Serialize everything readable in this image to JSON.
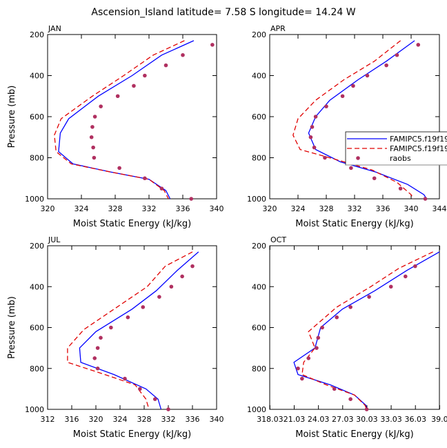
{
  "figure": {
    "title": "Ascension_Island   latitude=  7.58 S longitude=  14.24 W"
  },
  "colors": {
    "model1": "#0000ff",
    "model2": "#e00000",
    "obs": "#b03060"
  },
  "legend": {
    "placement": "right of APR panel",
    "entries": [
      {
        "label": "FAMIPC5.f19f19.",
        "style": "solid",
        "color": "#0000ff"
      },
      {
        "label": "FAMIPC5.f19f19.",
        "style": "dashed",
        "color": "#e00000"
      },
      {
        "label": "raobs",
        "style": "marker",
        "color": "#b03060"
      }
    ]
  },
  "chart_data": [
    {
      "type": "line",
      "title": "JAN",
      "xlabel": "Moist Static Energy (kJ/kg)",
      "ylabel": "Pressure (mb)",
      "xlim": [
        320,
        340
      ],
      "ylim": [
        1000,
        200
      ],
      "xticks": [
        320,
        324,
        328,
        332,
        336,
        340
      ],
      "xticklabels": [
        "320",
        "324",
        "328",
        "332",
        "336",
        "340"
      ],
      "yticks": [
        200,
        400,
        600,
        800,
        1000
      ],
      "yticklabels": [
        "200",
        "400",
        "600",
        "800",
        "1000"
      ],
      "series": [
        {
          "name": "FAMIPC5.f19f19.",
          "style": "solid",
          "points": [
            [
              337.3,
              230
            ],
            [
              333.5,
              300
            ],
            [
              330.0,
              400
            ],
            [
              326.0,
              500
            ],
            [
              322.5,
              610
            ],
            [
              321.5,
              680
            ],
            [
              321.3,
              770
            ],
            [
              323.0,
              830
            ],
            [
              327.5,
              870
            ],
            [
              332.0,
              905
            ],
            [
              334.0,
              960
            ],
            [
              334.5,
              1000
            ]
          ]
        },
        {
          "name": "FAMIPC5.f19f19.",
          "style": "dashed",
          "points": [
            [
              336.2,
              230
            ],
            [
              332.5,
              300
            ],
            [
              329.0,
              400
            ],
            [
              325.3,
              500
            ],
            [
              321.6,
              610
            ],
            [
              320.8,
              690
            ],
            [
              321.0,
              770
            ],
            [
              322.8,
              830
            ],
            [
              327.5,
              870
            ],
            [
              332.0,
              905
            ],
            [
              333.8,
              960
            ],
            [
              334.3,
              1000
            ]
          ]
        },
        {
          "name": "raobs",
          "style": "marker",
          "points": [
            [
              339.5,
              250
            ],
            [
              336.0,
              300
            ],
            [
              334.0,
              350
            ],
            [
              331.5,
              400
            ],
            [
              330.2,
              450
            ],
            [
              328.3,
              500
            ],
            [
              326.3,
              550
            ],
            [
              325.6,
              600
            ],
            [
              325.3,
              650
            ],
            [
              325.2,
              700
            ],
            [
              325.4,
              750
            ],
            [
              325.5,
              800
            ],
            [
              328.5,
              850
            ],
            [
              331.5,
              900
            ],
            [
              333.5,
              950
            ],
            [
              337.0,
              1000
            ]
          ]
        }
      ]
    },
    {
      "type": "line",
      "title": "APR",
      "xlabel": "Moist Static Energy (kJ/kg)",
      "ylabel": "",
      "xlim": [
        320,
        344
      ],
      "ylim": [
        1000,
        200
      ],
      "xticks": [
        320,
        324,
        328,
        332,
        336,
        340,
        344
      ],
      "xticklabels": [
        "320",
        "324",
        "328",
        "332",
        "336",
        "340",
        "344"
      ],
      "yticks": [
        200,
        400,
        600,
        800,
        1000
      ],
      "yticklabels": [
        "200",
        "400",
        "600",
        "800",
        "1000"
      ],
      "series": [
        {
          "name": "FAMIPC5.f19f19.",
          "style": "solid",
          "points": [
            [
              340.5,
              230
            ],
            [
              336.5,
              330
            ],
            [
              332.5,
              420
            ],
            [
              328.5,
              520
            ],
            [
              326.5,
              600
            ],
            [
              325.5,
              680
            ],
            [
              326.5,
              760
            ],
            [
              330.0,
              820
            ],
            [
              335.0,
              870
            ],
            [
              339.5,
              930
            ],
            [
              341.8,
              980
            ],
            [
              342.2,
              1000
            ]
          ]
        },
        {
          "name": "FAMIPC5.f19f19.",
          "style": "dashed",
          "points": [
            [
              338.5,
              230
            ],
            [
              334.8,
              330
            ],
            [
              330.5,
              420
            ],
            [
              326.5,
              520
            ],
            [
              324.0,
              610
            ],
            [
              323.3,
              690
            ],
            [
              324.3,
              760
            ],
            [
              329.5,
              810
            ],
            [
              334.5,
              860
            ],
            [
              338.0,
              920
            ],
            [
              340.0,
              980
            ],
            [
              340.3,
              1000
            ]
          ]
        },
        {
          "name": "raobs",
          "style": "marker",
          "points": [
            [
              341.0,
              250
            ],
            [
              338.0,
              300
            ],
            [
              336.5,
              350
            ],
            [
              333.8,
              400
            ],
            [
              331.8,
              450
            ],
            [
              330.3,
              500
            ],
            [
              328.0,
              550
            ],
            [
              326.5,
              600
            ],
            [
              326.0,
              650
            ],
            [
              325.8,
              700
            ],
            [
              326.3,
              750
            ],
            [
              327.8,
              800
            ],
            [
              331.5,
              850
            ],
            [
              334.8,
              900
            ],
            [
              338.5,
              950
            ],
            [
              342.0,
              1000
            ]
          ]
        }
      ]
    },
    {
      "type": "line",
      "title": "JUL",
      "xlabel": "Moist Static Energy (kJ/kg)",
      "ylabel": "Pressure (mb)",
      "xlim": [
        312,
        340
      ],
      "ylim": [
        1000,
        200
      ],
      "xticks": [
        312,
        316,
        320,
        324,
        328,
        332,
        336,
        340
      ],
      "xticklabels": [
        "312",
        "316",
        "320",
        "324",
        "328",
        "332",
        "336",
        "340"
      ],
      "yticks": [
        200,
        400,
        600,
        800,
        1000
      ],
      "yticklabels": [
        "200",
        "400",
        "600",
        "800",
        "1000"
      ],
      "series": [
        {
          "name": "FAMIPC5.f19f19.",
          "style": "solid",
          "points": [
            [
              337.0,
              230
            ],
            [
              333.5,
              320
            ],
            [
              330.0,
              420
            ],
            [
              326.0,
              510
            ],
            [
              320.0,
              620
            ],
            [
              317.3,
              700
            ],
            [
              317.5,
              770
            ],
            [
              323.0,
              830
            ],
            [
              328.3,
              900
            ],
            [
              330.3,
              950
            ],
            [
              330.8,
              1000
            ]
          ]
        },
        {
          "name": "FAMIPC5.f19f19.",
          "style": "dashed",
          "points": [
            [
              336.0,
              230
            ],
            [
              331.5,
              300
            ],
            [
              328.5,
              400
            ],
            [
              323.5,
              500
            ],
            [
              318.0,
              610
            ],
            [
              315.3,
              700
            ],
            [
              315.3,
              770
            ],
            [
              320.5,
              820
            ],
            [
              326.5,
              880
            ],
            [
              328.3,
              950
            ],
            [
              328.8,
              1000
            ]
          ]
        },
        {
          "name": "raobs",
          "style": "marker",
          "points": [
            [
              336.0,
              300
            ],
            [
              334.3,
              350
            ],
            [
              332.5,
              400
            ],
            [
              330.5,
              450
            ],
            [
              327.8,
              500
            ],
            [
              325.3,
              550
            ],
            [
              322.5,
              600
            ],
            [
              320.8,
              650
            ],
            [
              320.3,
              700
            ],
            [
              319.8,
              750
            ],
            [
              320.3,
              800
            ],
            [
              324.8,
              850
            ],
            [
              327.3,
              900
            ],
            [
              329.8,
              950
            ],
            [
              332.0,
              1000
            ]
          ]
        }
      ]
    },
    {
      "type": "line",
      "title": "OCT",
      "xlabel": "Moist Static Energy (kJ/kg)",
      "ylabel": "",
      "xlim": [
        318.0,
        339.0
      ],
      "ylim": [
        1000,
        200
      ],
      "xticks": [
        318.03,
        321.03,
        324.03,
        327.03,
        330.03,
        333.03,
        336.03,
        339.03
      ],
      "xticklabels": [
        "318.03",
        "21.03",
        "24.03",
        "27.03",
        "30.03",
        "33.03",
        "36.03",
        "39.0"
      ],
      "yticks": [
        200,
        400,
        600,
        800,
        1000
      ],
      "yticklabels": [
        "200",
        "400",
        "600",
        "800",
        "1000"
      ],
      "series": [
        {
          "name": "FAMIPC5.f19f19.",
          "style": "solid",
          "points": [
            [
              339.0,
              230
            ],
            [
              335.0,
              320
            ],
            [
              331.0,
              420
            ],
            [
              327.0,
              510
            ],
            [
              324.3,
              600
            ],
            [
              323.6,
              700
            ],
            [
              321.0,
              770
            ],
            [
              321.5,
              830
            ],
            [
              325.5,
              880
            ],
            [
              328.5,
              930
            ],
            [
              329.9,
              980
            ],
            [
              330.0,
              1000
            ]
          ]
        },
        {
          "name": "FAMIPC5.f19f19.",
          "style": "dashed",
          "points": [
            [
              338.2,
              230
            ],
            [
              334.0,
              310
            ],
            [
              330.5,
              400
            ],
            [
              326.3,
              500
            ],
            [
              322.8,
              620
            ],
            [
              323.6,
              700
            ],
            [
              322.2,
              770
            ],
            [
              322.0,
              830
            ],
            [
              325.0,
              880
            ],
            [
              328.5,
              930
            ],
            [
              329.8,
              980
            ],
            [
              330.0,
              1000
            ]
          ]
        },
        {
          "name": "raobs",
          "style": "marker",
          "points": [
            [
              336.0,
              300
            ],
            [
              334.8,
              350
            ],
            [
              333.0,
              400
            ],
            [
              330.3,
              450
            ],
            [
              328.0,
              500
            ],
            [
              326.3,
              550
            ],
            [
              324.5,
              600
            ],
            [
              324.0,
              650
            ],
            [
              323.8,
              700
            ],
            [
              322.8,
              750
            ],
            [
              321.5,
              800
            ],
            [
              322.0,
              850
            ],
            [
              326.0,
              900
            ],
            [
              328.0,
              950
            ],
            [
              330.0,
              1000
            ]
          ]
        }
      ]
    }
  ]
}
